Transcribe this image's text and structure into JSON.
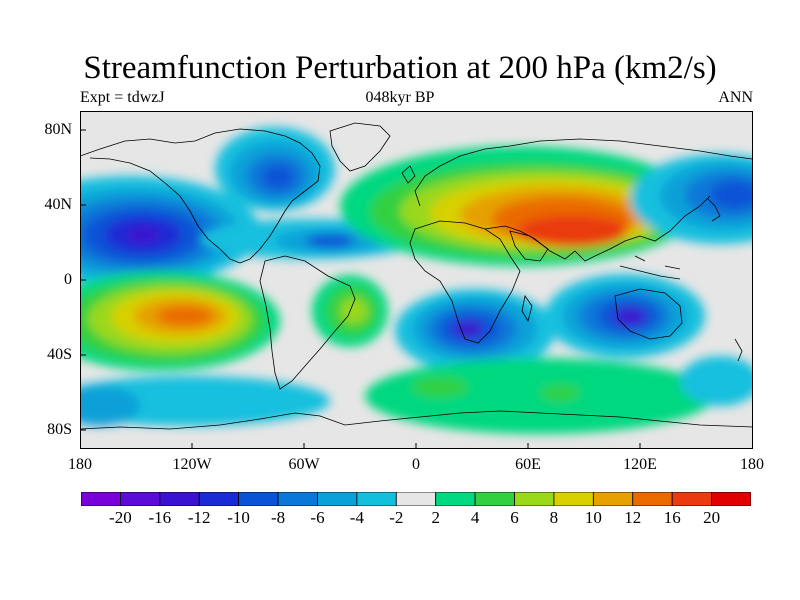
{
  "header": {
    "title": "Streamfunction Perturbation at 200 hPa (km2/s)",
    "left": "Expt = tdwzJ",
    "center": "048kyr BP",
    "right": "ANN"
  },
  "map": {
    "projection": "cylindrical equidistant",
    "lat_range": [
      -90,
      90
    ],
    "lon_range": [
      -180,
      180
    ],
    "background_color": "#e6e6e6",
    "y_ticks": [
      "80N",
      "40N",
      "0",
      "40S",
      "80S"
    ],
    "x_ticks": [
      "180",
      "120W",
      "60W",
      "0",
      "60E",
      "120E",
      "180"
    ]
  },
  "colorbar": {
    "labels": [
      "-20",
      "-16",
      "-12",
      "-10",
      "-8",
      "-6",
      "-4",
      "-2",
      "2",
      "4",
      "6",
      "8",
      "10",
      "12",
      "16",
      "20"
    ],
    "colors": [
      "#7a00d9",
      "#5b0cd6",
      "#3a12d0",
      "#1a2ad4",
      "#0a52d6",
      "#0a78d8",
      "#0aa0d8",
      "#12c0de",
      "#e6e6e6",
      "#00d880",
      "#30d040",
      "#9ad81a",
      "#d8d000",
      "#e6a000",
      "#ea6a00",
      "#ea3a10",
      "#e00000"
    ]
  }
}
